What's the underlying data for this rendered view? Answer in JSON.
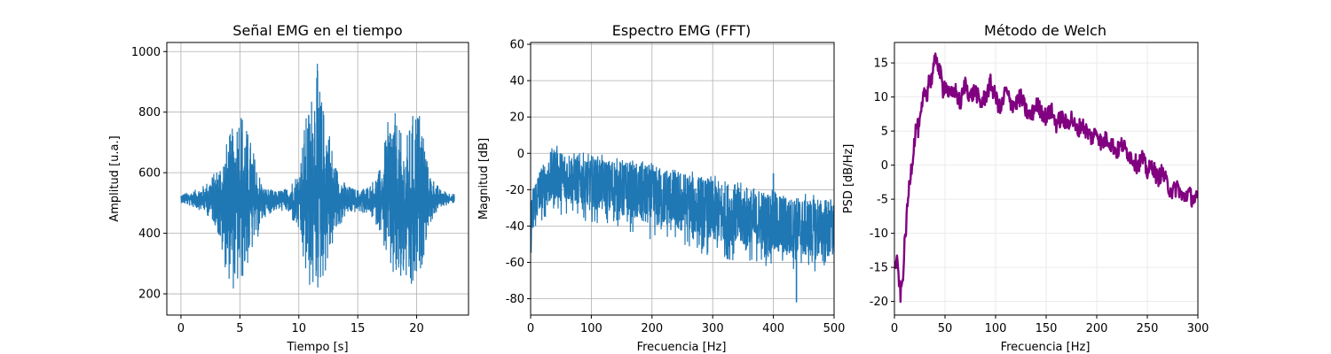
{
  "chart_data": [
    {
      "type": "line",
      "title": "Señal EMG en el tiempo",
      "xlabel": "Tiempo [s]",
      "ylabel": "Amplitud [u.a.]",
      "xlim": [
        -1.2,
        24.4
      ],
      "ylim": [
        130,
        1030
      ],
      "xticks": [
        0,
        5,
        10,
        15,
        20
      ],
      "yticks": [
        200,
        400,
        600,
        800,
        1000
      ],
      "grid": true,
      "color": "#1f77b4",
      "series": [
        {
          "x": [
            0,
            1,
            2,
            3,
            3.5,
            4,
            4.5,
            5,
            5.5,
            6,
            6.5,
            7,
            8,
            9,
            10,
            10.5,
            11,
            11.5,
            12,
            12.5,
            13,
            14,
            15,
            16,
            17,
            17.5,
            18,
            18.5,
            19,
            19.5,
            20,
            20.5,
            21,
            22,
            23.2
          ],
          "y_upper": [
            530,
            540,
            560,
            610,
            660,
            720,
            760,
            845,
            760,
            700,
            620,
            555,
            540,
            550,
            610,
            770,
            850,
            985,
            830,
            780,
            640,
            560,
            545,
            560,
            620,
            760,
            825,
            750,
            700,
            775,
            840,
            780,
            610,
            545,
            530
          ],
          "y_lower": [
            500,
            485,
            470,
            420,
            320,
            250,
            205,
            215,
            270,
            330,
            380,
            450,
            475,
            470,
            400,
            250,
            200,
            185,
            240,
            290,
            380,
            460,
            470,
            460,
            400,
            290,
            230,
            210,
            250,
            165,
            215,
            300,
            420,
            485,
            500
          ]
        }
      ]
    },
    {
      "type": "line",
      "title": "Espectro EMG (FFT)",
      "xlabel": "Frecuencia [Hz]",
      "ylabel": "Magnitud [dB]",
      "xlim": [
        0,
        500
      ],
      "ylim": [
        -89,
        61
      ],
      "xticks": [
        0,
        100,
        200,
        300,
        400,
        500
      ],
      "yticks": [
        -80,
        -60,
        -40,
        -20,
        0,
        20,
        40,
        60
      ],
      "grid": true,
      "color": "#1f77b4",
      "series": [
        {
          "x": [
            0,
            5,
            10,
            20,
            30,
            40,
            50,
            75,
            100,
            150,
            200,
            250,
            300,
            350,
            400,
            450,
            500
          ],
          "y_upper": [
            -25,
            -15,
            -10,
            -5,
            0,
            6,
            3,
            1,
            0,
            -2,
            -5,
            -8,
            -12,
            -16,
            -20,
            -22,
            -23
          ],
          "y_lower": [
            -58,
            -50,
            -42,
            -38,
            -35,
            -33,
            -34,
            -36,
            -38,
            -42,
            -48,
            -52,
            -58,
            -60,
            -63,
            -65,
            -66
          ]
        }
      ],
      "spikes": [
        {
          "x": 400,
          "y": -11
        },
        {
          "x": 438,
          "y": -82
        }
      ]
    },
    {
      "type": "line",
      "title": "Método de Welch",
      "xlabel": "Frecuencia [Hz]",
      "ylabel": "PSD [dB/Hz]",
      "xlim": [
        0,
        300
      ],
      "ylim": [
        -22,
        18
      ],
      "xticks": [
        0,
        50,
        100,
        150,
        200,
        250,
        300
      ],
      "yticks": [
        -20,
        -15,
        -10,
        -5,
        0,
        5,
        10,
        15
      ],
      "grid": true,
      "color": "#800080",
      "series": [
        {
          "x": [
            0,
            2,
            4,
            6,
            8,
            10,
            12,
            14,
            16,
            18,
            20,
            22,
            24,
            26,
            28,
            30,
            32,
            34,
            36,
            38,
            40,
            42,
            44,
            46,
            48,
            50,
            55,
            60,
            65,
            70,
            75,
            80,
            85,
            90,
            95,
            100,
            105,
            110,
            115,
            120,
            125,
            130,
            135,
            140,
            145,
            150,
            155,
            160,
            165,
            170,
            175,
            180,
            185,
            190,
            195,
            200,
            205,
            210,
            215,
            220,
            225,
            230,
            235,
            240,
            245,
            250,
            255,
            260,
            265,
            270,
            275,
            280,
            285,
            290,
            295,
            300
          ],
          "y": [
            -15,
            -14,
            -16,
            -19,
            -17,
            -12,
            -8,
            -4,
            -1,
            1,
            4,
            6,
            5,
            7,
            9,
            11,
            10,
            13,
            12,
            14,
            15,
            16,
            14,
            13,
            11,
            12,
            10,
            11,
            9,
            12,
            10,
            11,
            9,
            10,
            12,
            10,
            8,
            11,
            9,
            9,
            10,
            8,
            7,
            9,
            8,
            7,
            8,
            6,
            7,
            6,
            7,
            5,
            6,
            5,
            4,
            5,
            3,
            4,
            3,
            2,
            3,
            2,
            1,
            0,
            1,
            -1,
            0,
            -2,
            -1,
            -3,
            -4,
            -3,
            -5,
            -4,
            -5,
            -5
          ]
        }
      ]
    }
  ]
}
